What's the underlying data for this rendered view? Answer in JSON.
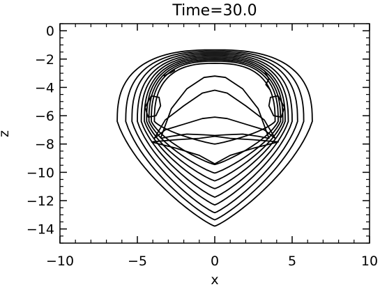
{
  "chart_data": {
    "type": "contour",
    "title": "Time=30.0",
    "xlabel": "x",
    "ylabel": "z",
    "xlim": [
      -10,
      10
    ],
    "ylim": [
      -15,
      0.5
    ],
    "x_ticks": [
      -10,
      -5,
      0,
      5,
      10
    ],
    "x_tick_labels": [
      "−10",
      "−5",
      "0",
      "5",
      "10"
    ],
    "y_ticks": [
      0,
      -2,
      -4,
      -6,
      -8,
      -10,
      -12,
      -14
    ],
    "y_tick_labels": [
      "0",
      "−2",
      "−4",
      "−6",
      "−8",
      "−10",
      "−12",
      "−14"
    ],
    "grid": false,
    "line_color": "#000000",
    "contours": [
      {
        "cx": 0,
        "top": -1.35,
        "mid_z": -6.4,
        "half_width": 6.3,
        "bottom": -13.8,
        "bump": 0.0
      },
      {
        "cx": 0,
        "top": -1.45,
        "mid_z": -6.4,
        "half_width": 5.75,
        "bottom": -13.35,
        "bump": 0.0
      },
      {
        "cx": 0,
        "top": -1.55,
        "mid_z": -6.4,
        "half_width": 5.35,
        "bottom": -12.85,
        "bump": 0.0
      },
      {
        "cx": 0,
        "top": -1.65,
        "mid_z": -6.4,
        "half_width": 5.0,
        "bottom": -12.3,
        "bump": 0.0
      },
      {
        "cx": 0,
        "top": -1.75,
        "mid_z": -6.4,
        "half_width": 4.75,
        "bottom": -11.75,
        "bump": 0.0
      },
      {
        "cx": 0,
        "top": -1.85,
        "mid_z": -6.4,
        "half_width": 4.55,
        "bottom": -11.15,
        "bump": 0.0
      },
      {
        "cx": 0,
        "top": -1.95,
        "mid_z": -6.4,
        "half_width": 4.4,
        "bottom": -10.6,
        "bump": 0.0
      },
      {
        "cx": 0,
        "top": -2.05,
        "mid_z": -6.4,
        "half_width": 4.25,
        "bottom": -10.05,
        "bump": 0.0
      },
      {
        "cx": 0,
        "top": -2.15,
        "mid_z": -6.4,
        "half_width": 4.1,
        "bottom": -9.45,
        "bump": 0.0
      },
      {
        "cx": 0,
        "top": -2.3,
        "mid_z": -6.4,
        "half_width": 3.9,
        "bottom": -8.0,
        "bump": 0.0
      }
    ],
    "inner_contours": [
      {
        "x": [
          -3.9,
          -3.2,
          -2.0,
          -0.8,
          0,
          0.8,
          2.0,
          3.2,
          3.9,
          3.2,
          2.0,
          0.8,
          0,
          -0.8,
          -2.0,
          -3.2,
          -3.9
        ],
        "z": [
          -7.6,
          -6.3,
          -5.3,
          -4.4,
          -4.2,
          -4.4,
          -5.3,
          -6.3,
          -7.6,
          -7.0,
          -6.6,
          -6.2,
          -6.1,
          -6.2,
          -6.6,
          -7.0,
          -7.6
        ]
      },
      {
        "x": [
          -3.5,
          -2.8,
          -1.8,
          -0.7,
          0,
          0.7,
          1.8,
          2.8,
          3.5,
          2.8,
          1.8,
          0.7,
          0,
          -0.7,
          -1.8,
          -2.8,
          -3.5
        ],
        "z": [
          -7.6,
          -5.5,
          -4.1,
          -3.3,
          -3.2,
          -3.3,
          -4.1,
          -5.5,
          -7.6,
          -7.45,
          -7.3,
          -7.35,
          -7.4,
          -7.35,
          -7.3,
          -7.45,
          -7.6
        ]
      },
      {
        "x": [
          -4.1,
          -2.5,
          -1.0,
          0,
          1.0,
          2.5,
          4.1,
          2.5,
          1.0,
          0,
          -1.0,
          -2.5,
          -4.1
        ],
        "z": [
          -7.85,
          -7.7,
          -7.6,
          -7.45,
          -7.6,
          -7.7,
          -7.85,
          -8.3,
          -8.8,
          -9.4,
          -8.8,
          -8.3,
          -7.85
        ]
      },
      {
        "x": [
          -4.1,
          -4.5,
          -4.3,
          -3.8,
          -3.5,
          -3.6,
          -4.1
        ],
        "z": [
          -4.6,
          -5.4,
          -6.1,
          -6.0,
          -5.3,
          -4.7,
          -4.6
        ]
      },
      {
        "x": [
          4.1,
          4.5,
          4.3,
          3.8,
          3.5,
          3.6,
          4.1
        ],
        "z": [
          -4.6,
          -5.4,
          -6.1,
          -6.0,
          -5.3,
          -4.7,
          -4.6
        ]
      },
      {
        "x": [
          -3.3,
          -2.6,
          -2.9
        ],
        "z": [
          -3.2,
          -2.8,
          -3.0
        ]
      },
      {
        "x": [
          3.2,
          3.5,
          3.3,
          3.6
        ],
        "z": [
          -2.8,
          -3.4,
          -3.8,
          -4.2
        ]
      }
    ]
  }
}
